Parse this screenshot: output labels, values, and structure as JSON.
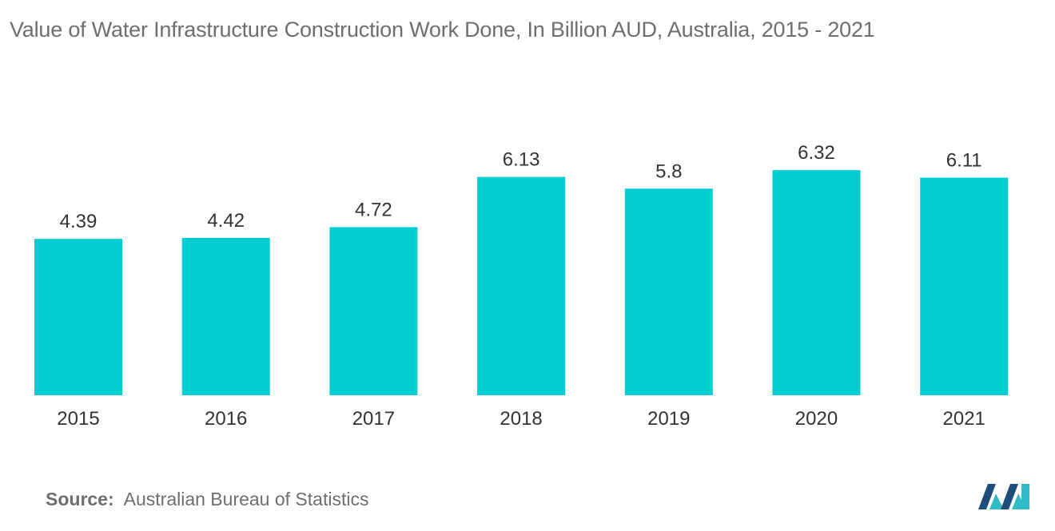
{
  "chart_data": {
    "type": "bar",
    "title": "Value of Water Infrastructure Construction Work Done, In Billion AUD, Australia, 2015 - 2021",
    "categories": [
      "2015",
      "2016",
      "2017",
      "2018",
      "2019",
      "2020",
      "2021"
    ],
    "values": [
      4.39,
      4.42,
      4.72,
      6.13,
      5.8,
      6.32,
      6.11
    ],
    "value_labels": [
      "4.39",
      "4.42",
      "4.72",
      "6.13",
      "5.8",
      "6.32",
      "6.11"
    ],
    "xlabel": "",
    "ylabel": "",
    "ylim": [
      0,
      7
    ],
    "grid": false,
    "legend": "none",
    "bar_color": "#00ced1"
  },
  "source": {
    "label": "Source:",
    "text": "Australian Bureau of Statistics"
  },
  "colors": {
    "bar": "#00ced1",
    "text": "#333333",
    "muted_text": "#6e6e6e",
    "logo_dark": "#1e4f7a",
    "logo_light": "#2fbcc6"
  }
}
